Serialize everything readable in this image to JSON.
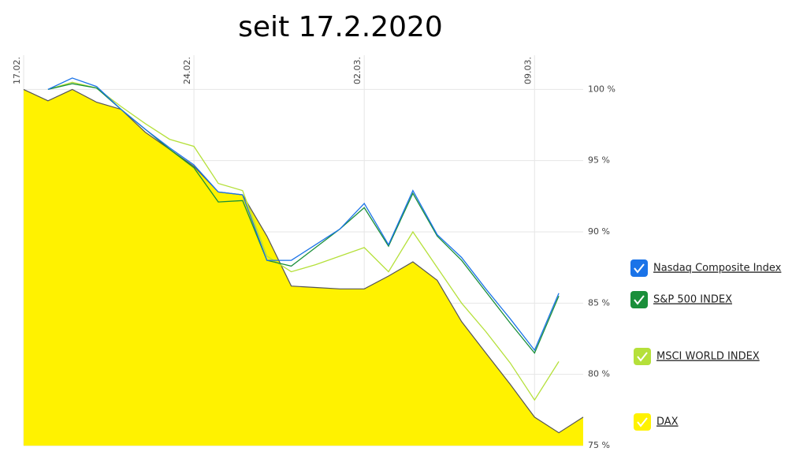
{
  "chart_data": {
    "type": "line",
    "title": "seit 17.2.2020",
    "categories": [
      "17.02.",
      null,
      null,
      null,
      null,
      null,
      null,
      "24.02.",
      null,
      null,
      null,
      null,
      null,
      null,
      "02.03.",
      null,
      null,
      null,
      null,
      null,
      null,
      "09.03.",
      null,
      null
    ],
    "ylim": [
      75,
      102.4
    ],
    "yticks": [
      {
        "value": 75,
        "label": "75 %"
      },
      {
        "value": 80,
        "label": "80 %"
      },
      {
        "value": 85,
        "label": "85 %"
      },
      {
        "value": 90,
        "label": "90 %"
      },
      {
        "value": 95,
        "label": "95 %"
      },
      {
        "value": 100,
        "label": "100 %"
      }
    ],
    "grid": true,
    "legend": "right",
    "series": [
      {
        "name": "Nasdaq Composite Index",
        "color": "#1a73e8",
        "values": [
          null,
          100,
          100.8,
          100.2,
          98.6,
          97.2,
          95.9,
          94.7,
          92.8,
          92.6,
          88.0,
          88.0,
          89.1,
          90.2,
          92.0,
          89.1,
          92.9,
          89.8,
          88.2,
          86.0,
          83.9,
          81.7,
          85.7,
          null
        ]
      },
      {
        "name": "S&P 500 INDEX",
        "color": "#1a8f3a",
        "values": [
          null,
          100,
          100.4,
          100.1,
          98.6,
          97.2,
          95.8,
          94.5,
          92.1,
          92.2,
          88.0,
          87.6,
          88.9,
          90.2,
          91.7,
          89.0,
          92.7,
          89.7,
          88.0,
          85.8,
          83.6,
          81.5,
          85.5,
          null
        ]
      },
      {
        "name": "MSCI WORLD INDEX",
        "color": "#b5e03a",
        "values": [
          null,
          100,
          100.5,
          100.1,
          98.8,
          97.6,
          96.5,
          96.0,
          93.4,
          92.9,
          88.3,
          87.2,
          87.7,
          88.3,
          88.9,
          87.2,
          90.0,
          87.5,
          85.0,
          83.0,
          80.8,
          78.2,
          80.9,
          null
        ]
      },
      {
        "name": "DAX",
        "color": "#fff200",
        "area": true,
        "values": [
          100,
          99.2,
          100,
          99.1,
          98.6,
          97.0,
          95.8,
          94.6,
          92.8,
          92.6,
          89.7,
          86.2,
          86.1,
          86.0,
          86.0,
          86.9,
          87.9,
          86.6,
          83.7,
          81.5,
          79.3,
          77.0,
          75.9,
          77.0
        ]
      }
    ]
  }
}
